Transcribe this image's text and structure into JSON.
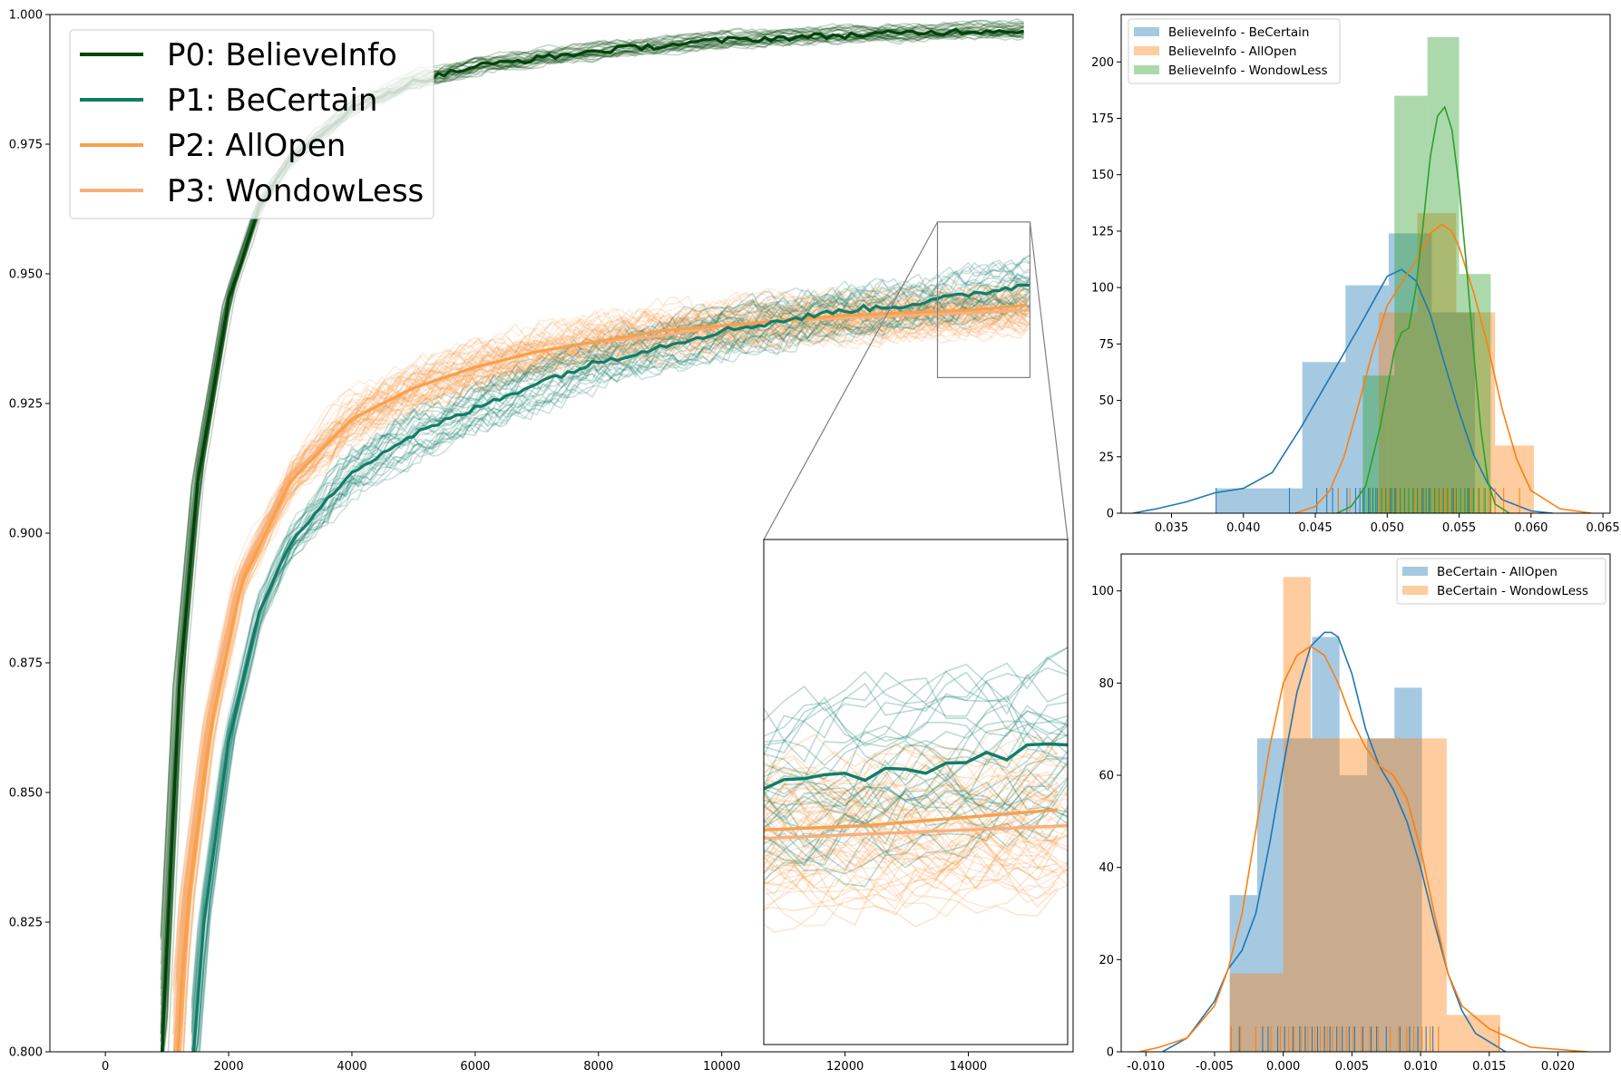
{
  "colors": {
    "p0": "#00440a",
    "p1": "#127c68",
    "p2": "#f9a04c",
    "p3": "#f8b07a",
    "hist_blue": "#1f77b4",
    "hist_orange": "#ff7f0e",
    "hist_green": "#2ca02c"
  },
  "chart_data": [
    {
      "type": "line",
      "title": "",
      "xlabel": "",
      "ylabel": "",
      "xlim": [
        -900,
        15700
      ],
      "ylim": [
        0.8,
        1.0
      ],
      "xticks": [
        "0",
        "2000",
        "4000",
        "6000",
        "8000",
        "10000",
        "12000",
        "14000"
      ],
      "xtick_values": [
        0,
        2000,
        4000,
        6000,
        8000,
        10000,
        12000,
        14000
      ],
      "yticks": [
        "0.800",
        "0.825",
        "0.850",
        "0.875",
        "0.900",
        "0.925",
        "0.950",
        "0.975",
        "1.000"
      ],
      "ytick_values": [
        0.8,
        0.825,
        0.85,
        0.875,
        0.9,
        0.925,
        0.95,
        0.975,
        1.0
      ],
      "legend_position": "upper-left",
      "series": [
        {
          "name": "P0: BelieveInfo",
          "color_key": "p0",
          "x": [
            900,
            1000,
            1200,
            1500,
            2000,
            2500,
            3000,
            4000,
            5000,
            6000,
            8000,
            10000,
            12000,
            14000,
            14900
          ],
          "y": [
            0.795,
            0.82,
            0.87,
            0.91,
            0.945,
            0.963,
            0.972,
            0.982,
            0.987,
            0.99,
            0.993,
            0.995,
            0.996,
            0.9968,
            0.997
          ]
        },
        {
          "name": "P1: BeCertain",
          "color_key": "p1",
          "x": [
            1400,
            1600,
            2000,
            2500,
            3000,
            4000,
            5000,
            6000,
            7000,
            8000,
            9000,
            10000,
            11000,
            12000,
            13000,
            14000,
            15000
          ],
          "y": [
            0.795,
            0.825,
            0.86,
            0.885,
            0.898,
            0.912,
            0.919,
            0.924,
            0.929,
            0.933,
            0.936,
            0.939,
            0.941,
            0.943,
            0.944,
            0.946,
            0.948
          ]
        },
        {
          "name": "P2: AllOpen",
          "color_key": "p2",
          "x": [
            1150,
            1300,
            1700,
            2200,
            3000,
            4000,
            5000,
            6000,
            7000,
            8000,
            9000,
            10000,
            11000,
            12000,
            13000,
            14000,
            15000
          ],
          "y": [
            0.795,
            0.825,
            0.862,
            0.89,
            0.91,
            0.922,
            0.928,
            0.932,
            0.935,
            0.937,
            0.939,
            0.94,
            0.941,
            0.942,
            0.9425,
            0.943,
            0.944
          ]
        },
        {
          "name": "P3: WondowLess",
          "color_key": "p3",
          "x": [
            1100,
            1250,
            1650,
            2150,
            3000,
            4000,
            5000,
            6000,
            7000,
            8000,
            9000,
            10000,
            11000,
            12000,
            13000,
            14000,
            15000
          ],
          "y": [
            0.795,
            0.826,
            0.863,
            0.891,
            0.911,
            0.922,
            0.928,
            0.932,
            0.935,
            0.937,
            0.938,
            0.94,
            0.941,
            0.9415,
            0.942,
            0.9425,
            0.943
          ]
        }
      ],
      "zoom_region": {
        "x": [
          13500,
          15000
        ],
        "y": [
          0.93,
          0.96
        ]
      }
    },
    {
      "type": "histogram",
      "title": "",
      "xlim": [
        0.0315,
        0.0655
      ],
      "ylim": [
        0,
        221
      ],
      "xticks": [
        "0.035",
        "0.040",
        "0.045",
        "0.050",
        "0.055",
        "0.060",
        "0.065"
      ],
      "xtick_values": [
        0.035,
        0.04,
        0.045,
        0.05,
        0.055,
        0.06,
        0.065
      ],
      "yticks": [
        "0",
        "25",
        "50",
        "75",
        "100",
        "125",
        "150",
        "175",
        "200"
      ],
      "ytick_values": [
        0,
        25,
        50,
        75,
        100,
        125,
        150,
        175,
        200
      ],
      "legend_position": "upper-left",
      "series": [
        {
          "name": "BelieveInfo - BeCertain",
          "color_key": "hist_blue",
          "bin_edges": [
            0.0381,
            0.0441,
            0.0471,
            0.0501,
            0.0531,
            0.0561
          ],
          "counts": [
            11,
            67,
            101,
            124,
            89
          ],
          "kde_x": [
            0.0323,
            0.034,
            0.036,
            0.038,
            0.04,
            0.042,
            0.044,
            0.046,
            0.048,
            0.05,
            0.051,
            0.052,
            0.053,
            0.054,
            0.055,
            0.056,
            0.057,
            0.058,
            0.06,
            0.0615
          ],
          "kde_y": [
            0,
            2,
            5,
            9,
            11,
            18,
            38,
            60,
            82,
            105,
            108,
            103,
            88,
            66,
            45,
            26,
            13,
            6,
            1,
            0
          ],
          "rug": [
            0.0381,
            0.0432,
            0.0451,
            0.0458,
            0.0462,
            0.0466,
            0.0472,
            0.0478,
            0.0481,
            0.0484,
            0.0487,
            0.049,
            0.0493,
            0.0496,
            0.0499,
            0.0501,
            0.0503,
            0.0506,
            0.0509,
            0.0512,
            0.0515,
            0.0518,
            0.0521,
            0.0525,
            0.0529,
            0.0534,
            0.0539,
            0.0546,
            0.0556
          ]
        },
        {
          "name": "BelieveInfo - AllOpen",
          "color_key": "hist_orange",
          "bin_edges": [
            0.0494,
            0.0521,
            0.0548,
            0.0575,
            0.0602
          ],
          "counts": [
            89,
            133,
            89,
            30
          ],
          "kde_x": [
            0.0436,
            0.045,
            0.046,
            0.047,
            0.048,
            0.049,
            0.05,
            0.051,
            0.052,
            0.053,
            0.0538,
            0.0545,
            0.055,
            0.056,
            0.057,
            0.058,
            0.059,
            0.06,
            0.062,
            0.0642
          ],
          "kde_y": [
            0,
            3,
            10,
            25,
            48,
            72,
            92,
            102,
            112,
            124,
            128,
            125,
            118,
            98,
            74,
            46,
            24,
            10,
            2,
            0
          ],
          "rug": [
            0.0466,
            0.0474,
            0.0488,
            0.0494,
            0.0498,
            0.0501,
            0.0505,
            0.0508,
            0.0512,
            0.0515,
            0.0519,
            0.0523,
            0.0527,
            0.053,
            0.0534,
            0.0537,
            0.054,
            0.0543,
            0.0547,
            0.0551,
            0.0554,
            0.0558,
            0.0563,
            0.0567,
            0.0571,
            0.0575,
            0.0581,
            0.0592
          ]
        },
        {
          "name": "BelieveInfo - WondowLess",
          "color_key": "hist_green",
          "bin_edges": [
            0.0483,
            0.0505,
            0.0528,
            0.055,
            0.0572
          ],
          "counts": [
            61,
            185,
            211,
            106
          ],
          "kde_x": [
            0.0465,
            0.0475,
            0.0485,
            0.0495,
            0.0505,
            0.051,
            0.0515,
            0.052,
            0.0525,
            0.053,
            0.0535,
            0.054,
            0.0545,
            0.055,
            0.0555,
            0.056,
            0.0565,
            0.057,
            0.0575,
            0.0585
          ],
          "kde_y": [
            0,
            3,
            12,
            38,
            72,
            80,
            82,
            100,
            128,
            158,
            176,
            180,
            170,
            145,
            110,
            72,
            38,
            14,
            4,
            0
          ],
          "rug": [
            0.0483,
            0.0488,
            0.0492,
            0.0496,
            0.0499,
            0.0502,
            0.0505,
            0.0509,
            0.0512,
            0.0515,
            0.0518,
            0.0521,
            0.0524,
            0.0527,
            0.053,
            0.0533,
            0.0536,
            0.0539,
            0.0542,
            0.0545,
            0.0548,
            0.0551,
            0.0554,
            0.0557,
            0.056,
            0.0564,
            0.0568,
            0.0572
          ]
        }
      ]
    },
    {
      "type": "histogram",
      "title": "",
      "xlim": [
        -0.0118,
        0.0238
      ],
      "ylim": [
        0,
        108
      ],
      "xticks": [
        "-0.010",
        "-0.005",
        "0.000",
        "0.005",
        "0.010",
        "0.015",
        "0.020"
      ],
      "xtick_values": [
        -0.01,
        -0.005,
        0,
        0.005,
        0.01,
        0.015,
        0.02
      ],
      "yticks": [
        "0",
        "20",
        "40",
        "60",
        "80",
        "100"
      ],
      "ytick_values": [
        0,
        20,
        40,
        60,
        80,
        100
      ],
      "legend_position": "upper-right",
      "series": [
        {
          "name": "BeCertain - AllOpen",
          "color_key": "hist_blue",
          "bin_edges": [
            -0.0039,
            -0.0019,
            0.0,
            0.0021,
            0.0041,
            0.0061,
            0.0081,
            0.0101,
            0.0121
          ],
          "counts": [
            34,
            68,
            68,
            90,
            60,
            68,
            79,
            0
          ],
          "kde_x": [
            -0.0088,
            -0.007,
            -0.005,
            -0.004,
            -0.003,
            -0.002,
            -0.001,
            0.0,
            0.001,
            0.002,
            0.003,
            0.0035,
            0.004,
            0.005,
            0.006,
            0.007,
            0.008,
            0.009,
            0.01,
            0.011,
            0.012,
            0.013,
            0.014,
            0.0162
          ],
          "kde_y": [
            0,
            3,
            11,
            18,
            22,
            30,
            45,
            62,
            78,
            88,
            91,
            91,
            90,
            82,
            70,
            62,
            57,
            50,
            40,
            28,
            17,
            9,
            4,
            0
          ],
          "rug": [
            -0.0038,
            -0.0032,
            -0.0015,
            -0.0011,
            -0.0004,
            0.0001,
            0.0007,
            0.0012,
            0.0016,
            0.0021,
            0.0025,
            0.003,
            0.0034,
            0.0039,
            0.0043,
            0.0048,
            0.0052,
            0.0058,
            0.0064,
            0.0068,
            0.0075,
            0.0085,
            0.0092,
            0.0098,
            0.0104,
            0.0109
          ]
        },
        {
          "name": "BeCertain - WondowLess",
          "color_key": "hist_orange",
          "bin_edges": [
            -0.0039,
            0.0,
            0.002,
            0.0078,
            0.0119,
            0.0158
          ],
          "counts": [
            17,
            103,
            68,
            68,
            8
          ],
          "kde_x": [
            -0.0105,
            -0.009,
            -0.007,
            -0.005,
            -0.004,
            -0.003,
            -0.002,
            -0.001,
            0.0,
            0.001,
            0.002,
            0.003,
            0.004,
            0.005,
            0.006,
            0.007,
            0.008,
            0.009,
            0.01,
            0.011,
            0.012,
            0.013,
            0.015,
            0.018,
            0.0222
          ],
          "kde_y": [
            0,
            1,
            3,
            10,
            18,
            30,
            48,
            66,
            80,
            86,
            88,
            86,
            80,
            72,
            66,
            62,
            60,
            55,
            44,
            30,
            17,
            10,
            5,
            1,
            0
          ],
          "rug": [
            -0.0038,
            -0.0031,
            -0.002,
            -0.0009,
            -0.0002,
            0.0004,
            0.0008,
            0.0013,
            0.0018,
            0.0023,
            0.0027,
            0.0032,
            0.0036,
            0.0041,
            0.0046,
            0.0051,
            0.0057,
            0.0063,
            0.0069,
            0.0078,
            0.0084,
            0.009,
            0.0095,
            0.0101,
            0.0107,
            0.0113,
            0.0157
          ]
        }
      ]
    }
  ]
}
